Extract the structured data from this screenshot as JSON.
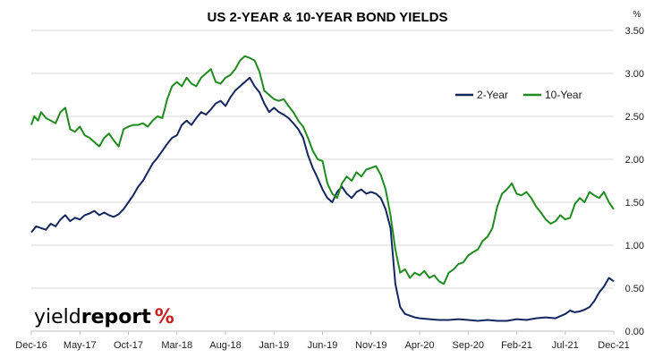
{
  "logo": {
    "part1": "yield",
    "part2": "report",
    "part3": "%"
  },
  "chart_data": {
    "type": "line",
    "title": "US 2-YEAR & 10-YEAR BOND YIELDS",
    "unit": "%",
    "y_axis_side": "right",
    "ylim": [
      0,
      3.5
    ],
    "yticks": [
      "0.00",
      "0.50",
      "1.00",
      "1.50",
      "2.00",
      "2.50",
      "3.00",
      "3.50"
    ],
    "xlim": [
      0,
      60
    ],
    "xtick_labels": [
      "Dec-16",
      "May-17",
      "Oct-17",
      "Mar-18",
      "Aug-18",
      "Jan-19",
      "Jun-19",
      "Nov-19",
      "Apr-20",
      "Sep-20",
      "Feb-21",
      "Jul-21",
      "Dec-21"
    ],
    "xtick_positions": [
      0,
      5,
      10,
      15,
      20,
      25,
      30,
      35,
      40,
      45,
      50,
      55,
      60
    ],
    "grid": "horizontal",
    "legend_position": "top-right",
    "series": [
      {
        "name": "2-Year",
        "color": "#13275f",
        "points": [
          [
            0,
            1.15
          ],
          [
            0.5,
            1.22
          ],
          [
            1,
            1.2
          ],
          [
            1.5,
            1.18
          ],
          [
            2,
            1.25
          ],
          [
            2.5,
            1.22
          ],
          [
            3,
            1.3
          ],
          [
            3.5,
            1.35
          ],
          [
            4,
            1.28
          ],
          [
            4.5,
            1.32
          ],
          [
            5,
            1.3
          ],
          [
            5.5,
            1.35
          ],
          [
            6,
            1.37
          ],
          [
            6.5,
            1.4
          ],
          [
            7,
            1.35
          ],
          [
            7.5,
            1.38
          ],
          [
            8,
            1.35
          ],
          [
            8.5,
            1.33
          ],
          [
            9,
            1.36
          ],
          [
            9.5,
            1.42
          ],
          [
            10,
            1.5
          ],
          [
            10.5,
            1.58
          ],
          [
            11,
            1.68
          ],
          [
            11.5,
            1.75
          ],
          [
            12,
            1.85
          ],
          [
            12.5,
            1.95
          ],
          [
            13,
            2.02
          ],
          [
            13.5,
            2.1
          ],
          [
            14,
            2.18
          ],
          [
            14.5,
            2.25
          ],
          [
            15,
            2.28
          ],
          [
            15.5,
            2.4
          ],
          [
            16,
            2.45
          ],
          [
            16.5,
            2.4
          ],
          [
            17,
            2.48
          ],
          [
            17.5,
            2.55
          ],
          [
            18,
            2.52
          ],
          [
            18.5,
            2.58
          ],
          [
            19,
            2.65
          ],
          [
            19.5,
            2.68
          ],
          [
            20,
            2.62
          ],
          [
            20.5,
            2.72
          ],
          [
            21,
            2.8
          ],
          [
            21.5,
            2.85
          ],
          [
            22,
            2.9
          ],
          [
            22.5,
            2.95
          ],
          [
            23,
            2.85
          ],
          [
            23.5,
            2.78
          ],
          [
            24,
            2.65
          ],
          [
            24.5,
            2.55
          ],
          [
            25,
            2.6
          ],
          [
            25.5,
            2.55
          ],
          [
            26,
            2.52
          ],
          [
            26.5,
            2.48
          ],
          [
            27,
            2.42
          ],
          [
            27.5,
            2.35
          ],
          [
            28,
            2.25
          ],
          [
            28.5,
            2.05
          ],
          [
            29,
            1.9
          ],
          [
            29.5,
            1.78
          ],
          [
            30,
            1.65
          ],
          [
            30.5,
            1.55
          ],
          [
            31,
            1.5
          ],
          [
            31.5,
            1.62
          ],
          [
            32,
            1.68
          ],
          [
            32.5,
            1.6
          ],
          [
            33,
            1.55
          ],
          [
            33.5,
            1.62
          ],
          [
            34,
            1.65
          ],
          [
            34.5,
            1.6
          ],
          [
            35,
            1.62
          ],
          [
            35.5,
            1.6
          ],
          [
            36,
            1.55
          ],
          [
            36.5,
            1.42
          ],
          [
            37,
            1.2
          ],
          [
            37.5,
            0.55
          ],
          [
            38,
            0.28
          ],
          [
            38.5,
            0.2
          ],
          [
            39,
            0.18
          ],
          [
            39.5,
            0.16
          ],
          [
            40,
            0.15
          ],
          [
            41,
            0.14
          ],
          [
            42,
            0.13
          ],
          [
            43,
            0.13
          ],
          [
            44,
            0.14
          ],
          [
            45,
            0.13
          ],
          [
            46,
            0.12
          ],
          [
            47,
            0.13
          ],
          [
            48,
            0.12
          ],
          [
            49,
            0.12
          ],
          [
            50,
            0.14
          ],
          [
            51,
            0.13
          ],
          [
            52,
            0.15
          ],
          [
            53,
            0.16
          ],
          [
            54,
            0.15
          ],
          [
            55,
            0.2
          ],
          [
            55.5,
            0.24
          ],
          [
            56,
            0.22
          ],
          [
            56.5,
            0.23
          ],
          [
            57,
            0.25
          ],
          [
            57.5,
            0.28
          ],
          [
            58,
            0.35
          ],
          [
            58.5,
            0.45
          ],
          [
            59,
            0.52
          ],
          [
            59.5,
            0.62
          ],
          [
            60,
            0.58
          ]
        ]
      },
      {
        "name": "10-Year",
        "color": "#1e8c1e",
        "points": [
          [
            0,
            2.4
          ],
          [
            0.3,
            2.5
          ],
          [
            0.7,
            2.45
          ],
          [
            1,
            2.55
          ],
          [
            1.5,
            2.48
          ],
          [
            2,
            2.45
          ],
          [
            2.5,
            2.42
          ],
          [
            3,
            2.55
          ],
          [
            3.5,
            2.6
          ],
          [
            4,
            2.35
          ],
          [
            4.5,
            2.32
          ],
          [
            5,
            2.38
          ],
          [
            5.5,
            2.28
          ],
          [
            6,
            2.25
          ],
          [
            6.5,
            2.2
          ],
          [
            7,
            2.15
          ],
          [
            7.5,
            2.25
          ],
          [
            8,
            2.3
          ],
          [
            8.5,
            2.22
          ],
          [
            9,
            2.15
          ],
          [
            9.5,
            2.35
          ],
          [
            10,
            2.38
          ],
          [
            10.5,
            2.4
          ],
          [
            11,
            2.4
          ],
          [
            11.5,
            2.42
          ],
          [
            12,
            2.38
          ],
          [
            12.5,
            2.45
          ],
          [
            13,
            2.5
          ],
          [
            13.5,
            2.48
          ],
          [
            14,
            2.7
          ],
          [
            14.5,
            2.85
          ],
          [
            15,
            2.9
          ],
          [
            15.5,
            2.85
          ],
          [
            16,
            2.95
          ],
          [
            16.5,
            2.88
          ],
          [
            17,
            2.85
          ],
          [
            17.5,
            2.95
          ],
          [
            18,
            3.0
          ],
          [
            18.5,
            3.05
          ],
          [
            19,
            2.9
          ],
          [
            19.5,
            2.88
          ],
          [
            20,
            2.95
          ],
          [
            20.5,
            2.98
          ],
          [
            21,
            3.05
          ],
          [
            21.5,
            3.15
          ],
          [
            22,
            3.2
          ],
          [
            22.5,
            3.18
          ],
          [
            23,
            3.15
          ],
          [
            23.5,
            3.02
          ],
          [
            24,
            2.8
          ],
          [
            24.5,
            2.75
          ],
          [
            25,
            2.7
          ],
          [
            25.5,
            2.68
          ],
          [
            26,
            2.7
          ],
          [
            26.5,
            2.62
          ],
          [
            27,
            2.55
          ],
          [
            27.5,
            2.45
          ],
          [
            28,
            2.38
          ],
          [
            28.5,
            2.25
          ],
          [
            29,
            2.1
          ],
          [
            29.5,
            2.0
          ],
          [
            30,
            1.98
          ],
          [
            30.5,
            1.72
          ],
          [
            31,
            1.6
          ],
          [
            31.5,
            1.55
          ],
          [
            32,
            1.72
          ],
          [
            32.5,
            1.8
          ],
          [
            33,
            1.75
          ],
          [
            33.5,
            1.85
          ],
          [
            34,
            1.8
          ],
          [
            34.5,
            1.88
          ],
          [
            35,
            1.9
          ],
          [
            35.5,
            1.92
          ],
          [
            36,
            1.82
          ],
          [
            36.5,
            1.65
          ],
          [
            37,
            1.35
          ],
          [
            37.5,
            0.95
          ],
          [
            38,
            0.68
          ],
          [
            38.5,
            0.72
          ],
          [
            39,
            0.62
          ],
          [
            39.5,
            0.68
          ],
          [
            40,
            0.65
          ],
          [
            40.5,
            0.7
          ],
          [
            41,
            0.62
          ],
          [
            41.5,
            0.65
          ],
          [
            42,
            0.58
          ],
          [
            42.5,
            0.55
          ],
          [
            43,
            0.68
          ],
          [
            43.5,
            0.72
          ],
          [
            44,
            0.78
          ],
          [
            44.5,
            0.8
          ],
          [
            45,
            0.88
          ],
          [
            45.5,
            0.92
          ],
          [
            46,
            0.95
          ],
          [
            46.5,
            1.05
          ],
          [
            47,
            1.1
          ],
          [
            47.5,
            1.2
          ],
          [
            48,
            1.45
          ],
          [
            48.5,
            1.6
          ],
          [
            49,
            1.65
          ],
          [
            49.5,
            1.72
          ],
          [
            50,
            1.6
          ],
          [
            50.5,
            1.58
          ],
          [
            51,
            1.62
          ],
          [
            51.5,
            1.55
          ],
          [
            52,
            1.45
          ],
          [
            52.5,
            1.38
          ],
          [
            53,
            1.3
          ],
          [
            53.5,
            1.25
          ],
          [
            54,
            1.28
          ],
          [
            54.5,
            1.35
          ],
          [
            55,
            1.3
          ],
          [
            55.5,
            1.32
          ],
          [
            56,
            1.48
          ],
          [
            56.5,
            1.55
          ],
          [
            57,
            1.5
          ],
          [
            57.5,
            1.62
          ],
          [
            58,
            1.58
          ],
          [
            58.5,
            1.55
          ],
          [
            59,
            1.62
          ],
          [
            59.5,
            1.5
          ],
          [
            60,
            1.42
          ]
        ]
      }
    ]
  }
}
